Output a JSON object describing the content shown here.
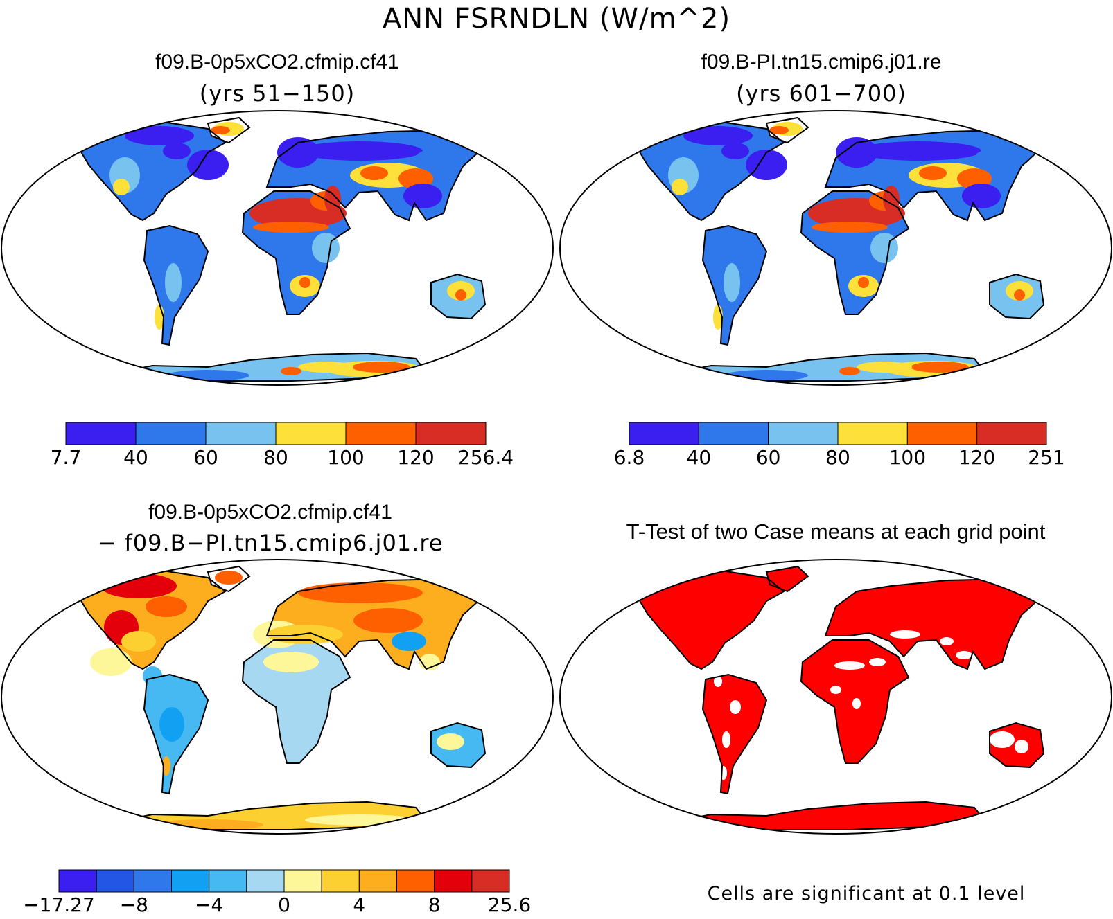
{
  "title": "ANN FSRNDLN (W/m^2)",
  "panels": [
    {
      "id": "case1",
      "title": "f09.B-0p5xCO2.cfmip.cf41",
      "subtitle": "(yrs 51−150)",
      "colorbar": {
        "colors": [
          "#3a1ff0",
          "#2f78ec",
          "#78c2f0",
          "#fde13a",
          "#fe6000",
          "#d72d25"
        ],
        "labels": [
          "7.7",
          "40",
          "60",
          "80",
          "100",
          "120",
          "256.4"
        ]
      }
    },
    {
      "id": "case2",
      "title": "f09.B-PI.tn15.cmip6.j01.re",
      "subtitle": "(yrs 601−700)",
      "colorbar": {
        "colors": [
          "#3a1ff0",
          "#2f78ec",
          "#78c2f0",
          "#fde13a",
          "#fe6000",
          "#d72d25"
        ],
        "labels": [
          "6.8",
          "40",
          "60",
          "80",
          "100",
          "120",
          "251"
        ]
      }
    },
    {
      "id": "difference",
      "title": "f09.B-0p5xCO2.cfmip.cf41",
      "subtitle": "− f09.B−PI.tn15.cmip6.j01.re",
      "colorbar": {
        "colors": [
          "#3a1ff0",
          "#2456e6",
          "#2f78ec",
          "#12a0f2",
          "#47b9f2",
          "#a6d8f2",
          "#fef79a",
          "#fdd032",
          "#fdae1f",
          "#fe6000",
          "#e3000a",
          "#d72d25"
        ],
        "labels": [
          "−17.27",
          "−8",
          "−4",
          "0",
          "4",
          "8",
          "25.6"
        ],
        "label_positions": [
          0,
          2,
          4,
          6,
          8,
          10,
          12
        ]
      }
    },
    {
      "id": "ttest",
      "title": "T-Test of two Case means at each grid point",
      "note": "Cells are significant at 0.1 level",
      "significant_color": "#ff0000"
    }
  ]
}
